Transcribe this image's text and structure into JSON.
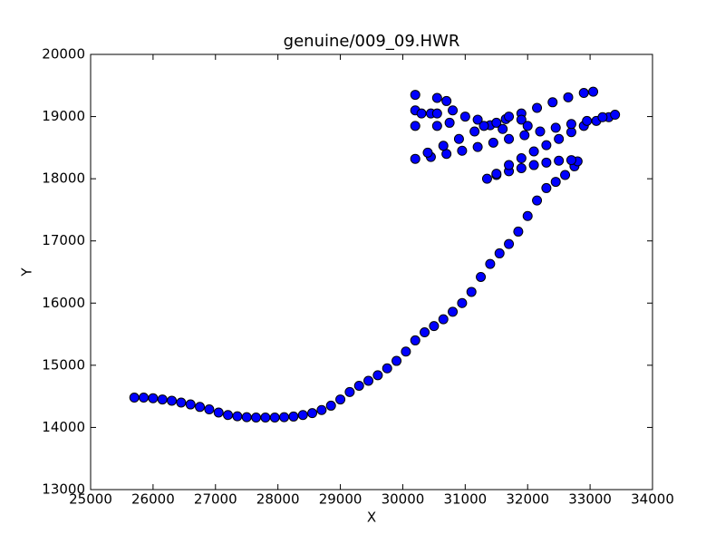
{
  "chart_data": {
    "type": "scatter",
    "title": "genuine/009_09.HWR",
    "xlabel": "X",
    "ylabel": "Y",
    "xlim": [
      25000,
      34000
    ],
    "ylim": [
      13000,
      20000
    ],
    "xticks": [
      25000,
      26000,
      27000,
      28000,
      29000,
      30000,
      31000,
      32000,
      33000,
      34000
    ],
    "yticks": [
      13000,
      14000,
      15000,
      16000,
      17000,
      18000,
      19000,
      20000
    ],
    "grid": false,
    "color": "#0000ff",
    "edgecolor": "#000000",
    "x": [
      25700,
      25850,
      26000,
      26150,
      26300,
      26450,
      26600,
      26750,
      26900,
      27050,
      27200,
      27350,
      27500,
      27650,
      27800,
      27950,
      28100,
      28250,
      28400,
      28550,
      28700,
      28850,
      29000,
      29150,
      29300,
      29450,
      29600,
      29750,
      29900,
      30050,
      30200,
      30350,
      30500,
      30650,
      30800,
      30950,
      31100,
      31250,
      31400,
      31550,
      31700,
      31850,
      32000,
      32150,
      32300,
      32450,
      32600,
      32750,
      32800,
      32700,
      32500,
      32300,
      32100,
      31900,
      31700,
      31500,
      31350,
      31500,
      31700,
      31900,
      32100,
      32300,
      32500,
      32700,
      32900,
      33100,
      33300,
      33400,
      33200,
      32950,
      32700,
      32450,
      32200,
      31950,
      31700,
      31450,
      31200,
      30950,
      30700,
      30450,
      30200,
      30400,
      30650,
      30900,
      31150,
      31400,
      31650,
      31900,
      32150,
      32400,
      32650,
      32900,
      33050,
      30200,
      30200,
      30200,
      30300,
      30450,
      30550,
      30550,
      30550,
      30700,
      30800,
      30750,
      31000,
      31200,
      31300,
      31500,
      31600,
      31700,
      31900,
      32000
    ],
    "y": [
      14480,
      14480,
      14470,
      14450,
      14430,
      14400,
      14370,
      14330,
      14290,
      14240,
      14200,
      14180,
      14165,
      14160,
      14160,
      14160,
      14165,
      14175,
      14200,
      14230,
      14280,
      14350,
      14450,
      14570,
      14670,
      14750,
      14840,
      14950,
      15070,
      15220,
      15400,
      15530,
      15630,
      15740,
      15860,
      16000,
      16180,
      16420,
      16630,
      16800,
      16950,
      17150,
      17400,
      17650,
      17850,
      17950,
      18060,
      18200,
      18280,
      18300,
      18290,
      18260,
      18220,
      18170,
      18120,
      18060,
      18000,
      18080,
      18220,
      18330,
      18440,
      18540,
      18640,
      18750,
      18850,
      18930,
      18990,
      19030,
      18990,
      18930,
      18880,
      18820,
      18760,
      18700,
      18640,
      18580,
      18510,
      18450,
      18400,
      18350,
      18320,
      18420,
      18530,
      18640,
      18760,
      18860,
      18960,
      19050,
      19140,
      19230,
      19310,
      19380,
      19400,
      19350,
      19100,
      18850,
      19050,
      19050,
      19300,
      19050,
      18850,
      19250,
      19100,
      18900,
      19000,
      18950,
      18850,
      18900,
      18800,
      19000,
      18950,
      18850
    ]
  }
}
